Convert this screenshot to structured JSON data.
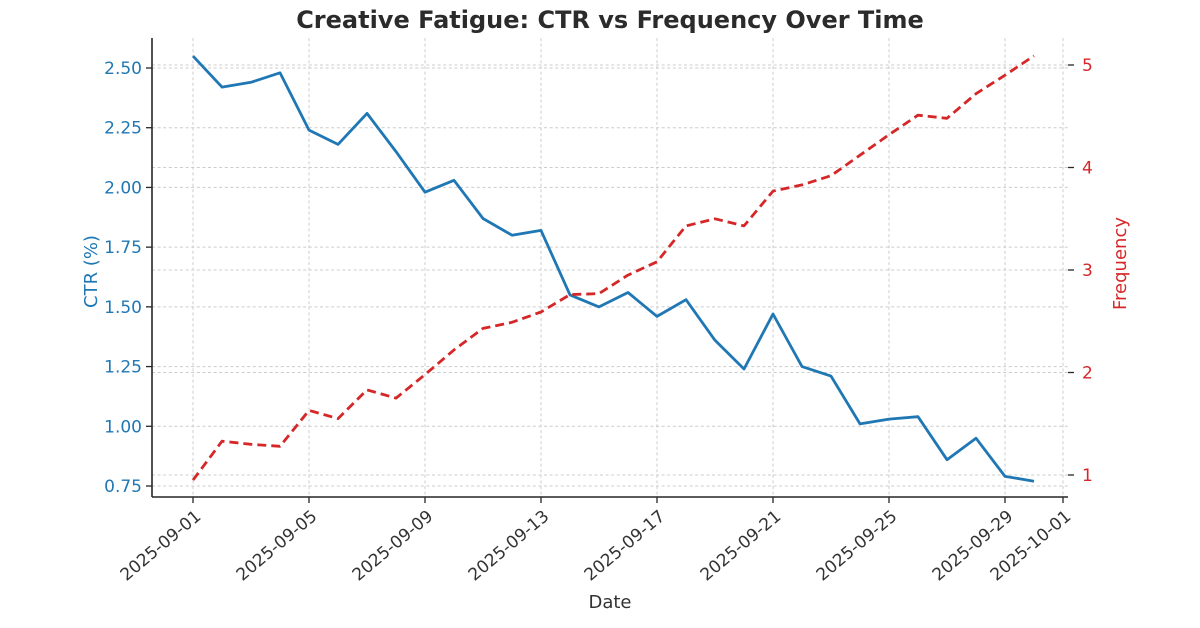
{
  "title": "Creative Fatigue: CTR vs Frequency Over Time",
  "xlabel": "Date",
  "colors": {
    "ctr_series": "#1f77b4",
    "frequency_series": "#d62728",
    "grid": "#cccccc",
    "spine": "#262626",
    "tick_text": "#333333",
    "title_text": "#2b2b2b"
  },
  "chart_data": {
    "type": "line",
    "title": "Creative Fatigue: CTR vs Frequency Over Time",
    "xlabel": "Date",
    "grid": true,
    "legend": "none",
    "x": [
      "2025-09-01",
      "2025-09-02",
      "2025-09-03",
      "2025-09-04",
      "2025-09-05",
      "2025-09-06",
      "2025-09-07",
      "2025-09-08",
      "2025-09-09",
      "2025-09-10",
      "2025-09-11",
      "2025-09-12",
      "2025-09-13",
      "2025-09-14",
      "2025-09-15",
      "2025-09-16",
      "2025-09-17",
      "2025-09-18",
      "2025-09-19",
      "2025-09-20",
      "2025-09-21",
      "2025-09-22",
      "2025-09-23",
      "2025-09-24",
      "2025-09-25",
      "2025-09-26",
      "2025-09-27",
      "2025-09-28",
      "2025-09-29",
      "2025-09-30"
    ],
    "x_tick_labels": [
      "2025-09-01",
      "2025-09-05",
      "2025-09-09",
      "2025-09-13",
      "2025-09-17",
      "2025-09-21",
      "2025-09-25",
      "2025-09-29",
      "2025-10-01"
    ],
    "x_tick_days": [
      0,
      4,
      8,
      12,
      16,
      20,
      24,
      28,
      30
    ],
    "series": [
      {
        "name": "CTR (%)",
        "axis": "left",
        "color": "#1f77b4",
        "line_style": "solid",
        "values": [
          2.55,
          2.42,
          2.44,
          2.48,
          2.24,
          2.18,
          2.31,
          2.15,
          1.98,
          2.03,
          1.87,
          1.8,
          1.82,
          1.55,
          1.5,
          1.56,
          1.46,
          1.53,
          1.36,
          1.24,
          1.47,
          1.25,
          1.21,
          1.01,
          1.03,
          1.04,
          0.86,
          0.95,
          0.79,
          0.77
        ]
      },
      {
        "name": "Frequency",
        "axis": "right",
        "color": "#d62728",
        "line_style": "dashed",
        "values": [
          0.95,
          1.33,
          1.3,
          1.28,
          1.63,
          1.55,
          1.83,
          1.75,
          1.98,
          2.22,
          2.43,
          2.49,
          2.59,
          2.76,
          2.77,
          2.95,
          3.08,
          3.43,
          3.5,
          3.43,
          3.77,
          3.83,
          3.92,
          4.12,
          4.32,
          4.51,
          4.48,
          4.72,
          4.9,
          5.09
        ]
      }
    ],
    "left_axis": {
      "label": "CTR (%)",
      "ticks": [
        0.75,
        1.0,
        1.25,
        1.5,
        1.75,
        2.0,
        2.25,
        2.5
      ],
      "tick_labels": [
        "0.75",
        "1.00",
        "1.25",
        "1.50",
        "1.75",
        "2.00",
        "2.25",
        "2.50"
      ],
      "range": [
        0.66,
        2.63
      ]
    },
    "right_axis": {
      "label": "Frequency",
      "ticks": [
        1,
        2,
        3,
        4,
        5
      ],
      "tick_labels": [
        "1",
        "2",
        "3",
        "4",
        "5"
      ],
      "range": [
        0.79,
        5.26
      ]
    }
  }
}
